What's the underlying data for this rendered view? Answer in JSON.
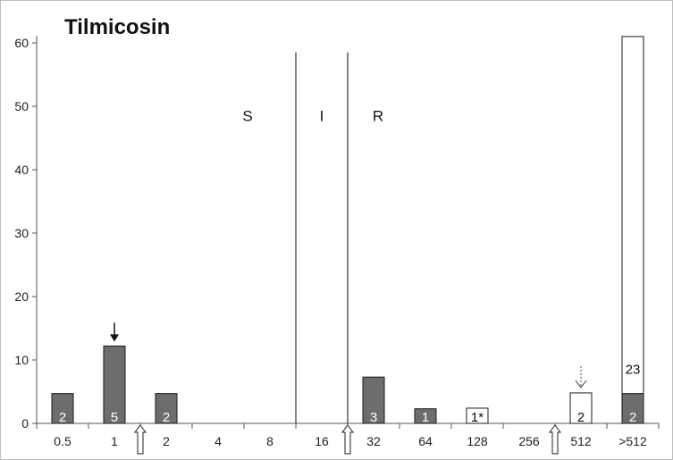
{
  "chart_data": {
    "type": "bar",
    "title": "Tilmicosin",
    "categories": [
      "0.5",
      "1",
      "2",
      "4",
      "8",
      "16",
      "32",
      "64",
      "128",
      "256",
      "512",
      ">512"
    ],
    "ylim": [
      0,
      60
    ],
    "yticks": [
      0,
      10,
      20,
      30,
      40,
      50,
      60
    ],
    "grid": false,
    "series": [
      {
        "values": [
          4.7,
          12.2,
          4.7,
          0,
          0,
          0,
          7.3,
          2.3,
          0,
          0,
          0,
          4.7
        ],
        "color": "#6d6d6d"
      },
      {
        "values": [
          0,
          0,
          0,
          0,
          0,
          0,
          0,
          0,
          2.4,
          0,
          4.8,
          56.3
        ],
        "color": "#ffffff"
      }
    ],
    "bar_labels": [
      {
        "category": "0.5",
        "text": "2"
      },
      {
        "category": "1",
        "text": "5"
      },
      {
        "category": "2",
        "text": "2"
      },
      {
        "category": "32",
        "text": "3"
      },
      {
        "category": "64",
        "text": "1"
      },
      {
        "category": "128",
        "text": "1*"
      },
      {
        "category": "512",
        "text": "2"
      },
      {
        "category": ">512",
        "text": "2"
      },
      {
        "category": ">512",
        "text": "23"
      }
    ],
    "zones": [
      "S",
      "I",
      "R"
    ],
    "breakpoints_after_category": [
      "8",
      "16"
    ],
    "markers": {
      "solid_down_arrow": "1",
      "dotted_down_arrow": "512",
      "hollow_up_arrows_between": [
        [
          "1",
          "2"
        ],
        [
          "16",
          "32"
        ],
        [
          "256",
          "512"
        ]
      ]
    }
  }
}
